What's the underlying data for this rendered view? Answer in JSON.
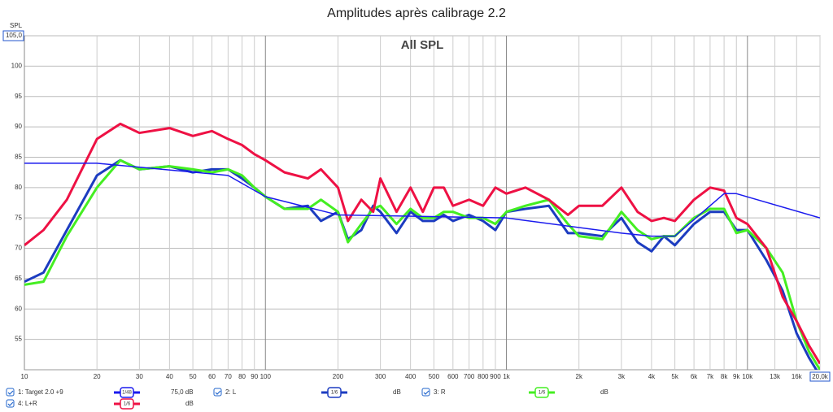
{
  "chart_data": {
    "type": "line",
    "title": "Amplitudes après calibrage 2.2",
    "subtitle": "All SPL",
    "y_label": "SPL",
    "log_x": true,
    "grid": true,
    "xlim": [
      10,
      20000
    ],
    "ylim": [
      50,
      105
    ],
    "xticks": [
      10,
      20,
      30,
      40,
      50,
      60,
      70,
      80,
      90,
      100,
      200,
      300,
      400,
      500,
      600,
      700,
      800,
      {
        "value": 900,
        "label": "900"
      },
      {
        "value": 1000,
        "label": "1k"
      },
      {
        "value": 2000,
        "label": "2k"
      },
      {
        "value": 3000,
        "label": "3k"
      },
      {
        "value": 4000,
        "label": "4k"
      },
      {
        "value": 5000,
        "label": "5k"
      },
      {
        "value": 6000,
        "label": "6k"
      },
      {
        "value": 7000,
        "label": "7k"
      },
      {
        "value": 8000,
        "label": "8k"
      },
      {
        "value": 9000,
        "label": "9k"
      },
      {
        "value": 10000,
        "label": "10k"
      },
      {
        "value": 13000,
        "label": "13k"
      },
      {
        "value": 16000,
        "label": "16k"
      },
      {
        "value": 20000,
        "label": "20,0k"
      }
    ],
    "yticks": [
      {
        "value": 105,
        "label": "105,0"
      },
      100,
      95,
      90,
      85,
      80,
      75,
      70,
      65,
      60,
      55
    ],
    "series": [
      {
        "name": "1: Target 2.0 +9",
        "color": "#1a1aee",
        "smoothing": "1/48",
        "level": "75,0 dB",
        "x": [
          10,
          20,
          70,
          100,
          200,
          1000,
          3000,
          4000,
          5000,
          8000,
          9000,
          20000
        ],
        "values": [
          84,
          84,
          82,
          78.5,
          75.5,
          75,
          72.5,
          72,
          72,
          79,
          79,
          75
        ]
      },
      {
        "name": "2: L",
        "color": "#1c3cc0",
        "smoothing": "1/6",
        "level": "dB",
        "x": [
          10,
          12,
          15,
          20,
          25,
          30,
          40,
          50,
          60,
          70,
          80,
          90,
          100,
          120,
          150,
          170,
          200,
          220,
          250,
          280,
          300,
          350,
          400,
          450,
          500,
          550,
          600,
          700,
          800,
          900,
          1000,
          1200,
          1500,
          1800,
          2000,
          2500,
          3000,
          3500,
          4000,
          4500,
          5000,
          6000,
          7000,
          8000,
          9000,
          10000,
          12000,
          14000,
          16000,
          18000,
          20000
        ],
        "values": [
          64.5,
          66,
          73,
          82,
          84.5,
          83,
          83.5,
          82.5,
          83,
          83,
          81.5,
          80,
          78.5,
          76.5,
          77,
          74.5,
          76,
          71.5,
          73,
          77,
          76,
          72.5,
          76,
          74.5,
          74.5,
          75.5,
          74.5,
          75.5,
          74.5,
          73,
          76,
          76.5,
          77,
          72.5,
          72.5,
          72,
          75,
          71,
          69.5,
          72,
          70.5,
          74,
          76,
          76,
          73,
          73,
          68,
          63,
          56,
          52,
          49
        ]
      },
      {
        "name": "3: R",
        "color": "#44ee22",
        "smoothing": "1/6",
        "level": "dB",
        "x": [
          10,
          12,
          15,
          20,
          25,
          30,
          40,
          50,
          60,
          70,
          80,
          90,
          100,
          120,
          150,
          170,
          200,
          220,
          250,
          280,
          300,
          350,
          400,
          450,
          500,
          550,
          600,
          700,
          800,
          900,
          1000,
          1200,
          1500,
          1800,
          2000,
          2500,
          3000,
          3500,
          4000,
          4500,
          5000,
          6000,
          7000,
          8000,
          9000,
          10000,
          12000,
          14000,
          16000,
          18000,
          20000
        ],
        "values": [
          64,
          64.5,
          72,
          80,
          84.5,
          83,
          83.5,
          83,
          82.5,
          83,
          82,
          80,
          78.5,
          76.5,
          76.5,
          78,
          76,
          71,
          74,
          76.5,
          77,
          74,
          76.5,
          75,
          75,
          76,
          76,
          75,
          75,
          74,
          76,
          77,
          78,
          74,
          72,
          71.5,
          76,
          73,
          71.5,
          72,
          72,
          75,
          76.5,
          76.5,
          72.5,
          73,
          70,
          66,
          58,
          53,
          50
        ]
      },
      {
        "name": "4: L+R",
        "color": "#ee1144",
        "smoothing": "1/6",
        "level": "dB",
        "x": [
          10,
          12,
          15,
          20,
          25,
          30,
          40,
          50,
          60,
          70,
          80,
          90,
          100,
          120,
          150,
          170,
          200,
          220,
          250,
          280,
          300,
          350,
          400,
          450,
          500,
          550,
          600,
          700,
          800,
          900,
          1000,
          1200,
          1500,
          1800,
          2000,
          2500,
          3000,
          3500,
          4000,
          4500,
          5000,
          6000,
          7000,
          8000,
          9000,
          10000,
          12000,
          14000,
          16000,
          18000,
          20000
        ],
        "values": [
          70.5,
          73,
          78,
          88,
          90.5,
          89,
          89.8,
          88.5,
          89.3,
          88,
          87,
          85.5,
          84.5,
          82.5,
          81.5,
          83,
          80,
          74.5,
          78,
          76,
          81.5,
          76,
          80,
          76,
          80,
          80,
          77,
          78,
          77,
          80,
          79,
          80,
          78,
          75.5,
          77,
          77,
          80,
          76,
          74.5,
          75,
          74.5,
          78,
          80,
          79.5,
          75,
          74,
          70,
          62,
          58,
          54,
          51
        ]
      }
    ]
  }
}
